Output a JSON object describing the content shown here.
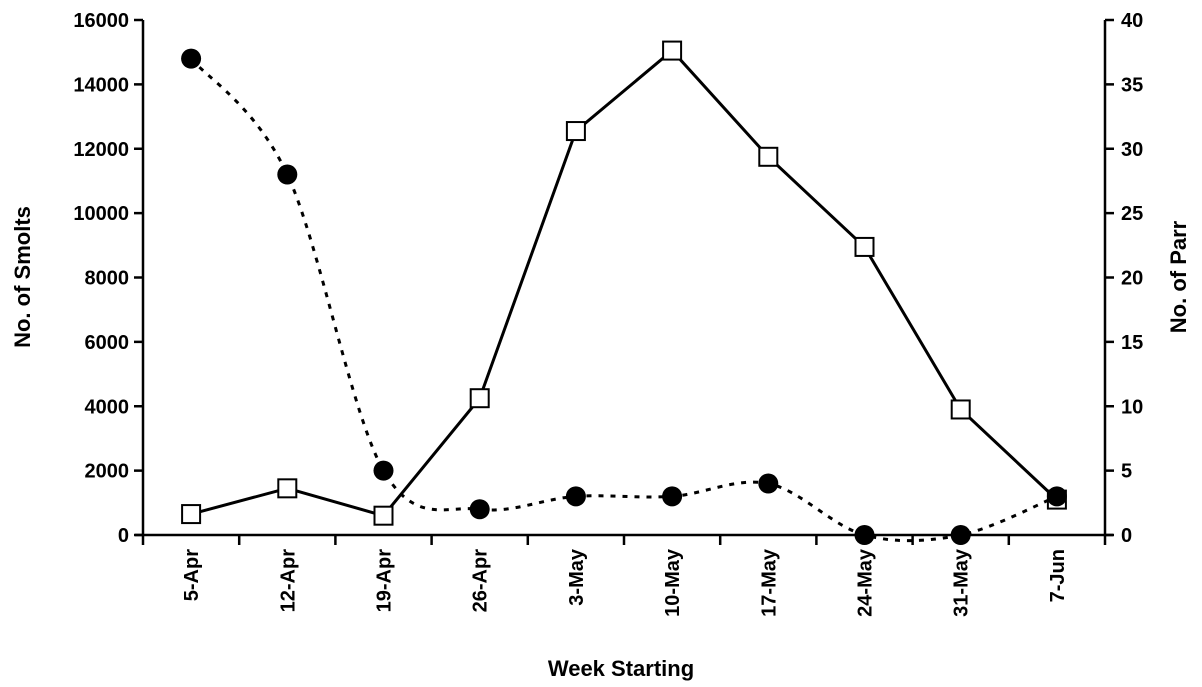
{
  "chart_data": {
    "type": "line",
    "title": "",
    "xlabel": "Week Starting",
    "ylabel": "No. of Smolts",
    "y2label": "No. of Parr",
    "categories": [
      "5-Apr",
      "12-Apr",
      "19-Apr",
      "26-Apr",
      "3-May",
      "10-May",
      "17-May",
      "24-May",
      "31-May",
      "7-Jun"
    ],
    "ylim": [
      0,
      16000
    ],
    "y2lim": [
      0,
      40
    ],
    "yticks": [
      "0",
      "2000",
      "4000",
      "6000",
      "8000",
      "10000",
      "12000",
      "14000",
      "16000"
    ],
    "y2ticks": [
      "0",
      "5",
      "10",
      "15",
      "20",
      "25",
      "30",
      "35",
      "40"
    ],
    "grid": false,
    "series": [
      {
        "axis": "left",
        "marker": "open-square",
        "line_style": "solid",
        "color": "#000000",
        "values": [
          650,
          1450,
          600,
          4250,
          12550,
          15050,
          11750,
          8950,
          3900,
          1100
        ]
      },
      {
        "axis": "right",
        "marker": "filled-circle",
        "line_style": "dotted",
        "color": "#000000",
        "values": [
          37,
          28,
          5,
          2,
          3,
          3,
          4,
          0,
          0,
          3
        ]
      }
    ]
  }
}
